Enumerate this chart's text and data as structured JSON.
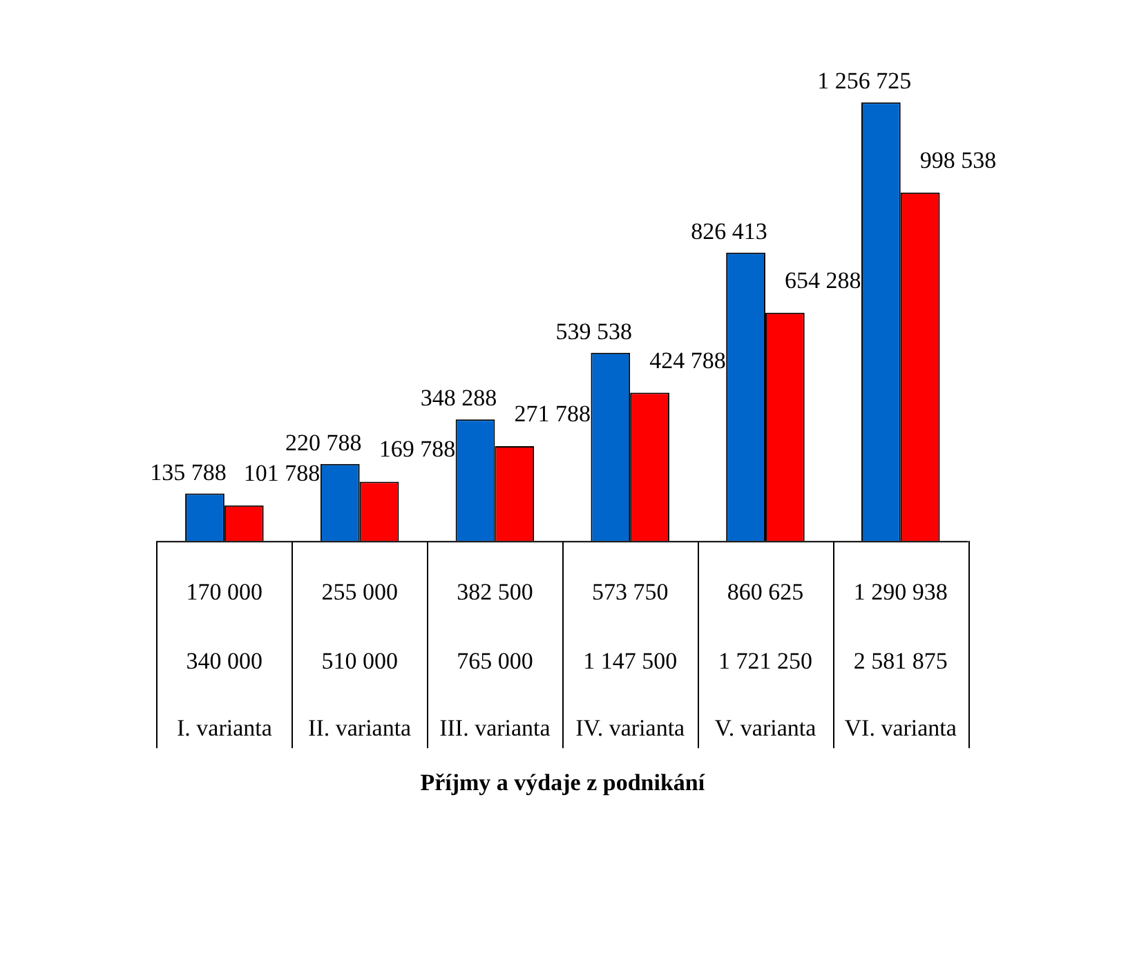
{
  "chart_data": {
    "type": "bar",
    "xlabel": "Příjmy a výdaje z podnikání",
    "categories": [
      "I. varianta",
      "II. varianta",
      "III. varianta",
      "IV. varianta",
      "V. varianta",
      "VI. varianta"
    ],
    "series": [
      {
        "color": "#0066cc",
        "values": [
          135788,
          220788,
          348288,
          539538,
          826413,
          1256725
        ]
      },
      {
        "color": "#ff0000",
        "values": [
          101788,
          169788,
          271788,
          424788,
          654288,
          998538
        ]
      }
    ],
    "data_labels": true,
    "legend": false,
    "grid": false,
    "annotations": [
      "170 000",
      "255 000",
      "382 500",
      "573 750",
      "860 625",
      "1 290 938",
      "340 000",
      "510 000",
      "765 000",
      "1 147 500",
      "1 721 250",
      "2 581 875"
    ]
  }
}
